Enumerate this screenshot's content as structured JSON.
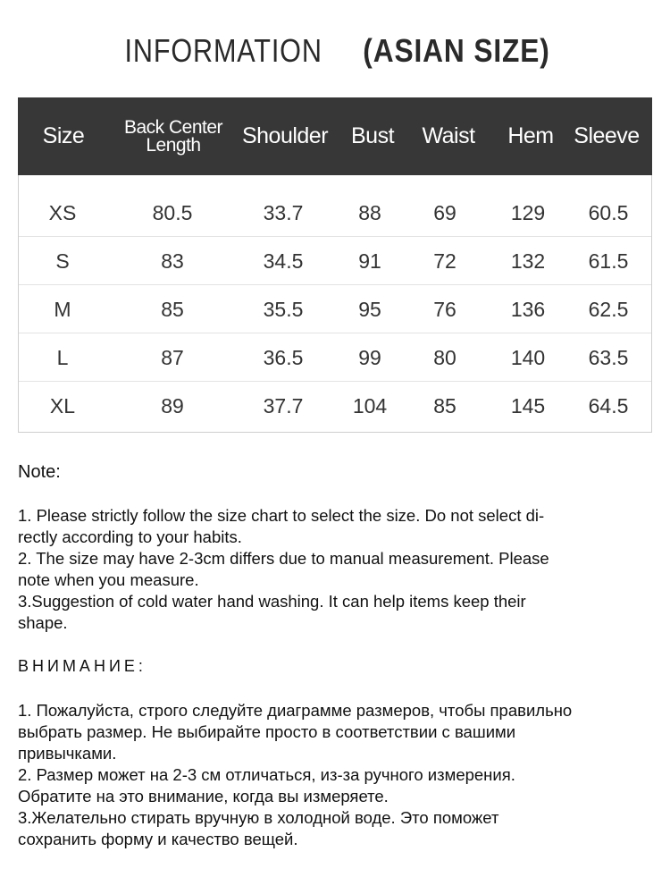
{
  "title": {
    "light": "INFORMATION",
    "bold": "(ASIAN SIZE)"
  },
  "table": {
    "headers": [
      "Size",
      "Back Center|Length",
      "Shoulder",
      "Bust",
      "Waist",
      "Hem",
      "Sleeve"
    ],
    "header_lines": {
      "back_center_1": "Back Center",
      "back_center_2": "Length"
    },
    "rows": [
      [
        "XS",
        "80.5",
        "33.7",
        "88",
        "69",
        "129",
        "60.5"
      ],
      [
        "S",
        "83",
        "34.5",
        "91",
        "72",
        "132",
        "61.5"
      ],
      [
        "M",
        "85",
        "35.5",
        "95",
        "76",
        "136",
        "62.5"
      ],
      [
        "L",
        "87",
        "36.5",
        "99",
        "80",
        "140",
        "63.5"
      ],
      [
        "XL",
        "89",
        "37.7",
        "104",
        "85",
        "145",
        "64.5"
      ]
    ],
    "header_bg": "#373737"
  },
  "note": {
    "heading": "Note:",
    "lines": [
      "1. Please strictly follow the size chart  to select the size. Do not select di-",
      "rectly according to your habits.",
      "2. The size may have 2-3cm differs due to manual measurement. Please",
      "note when you measure.",
      "3.Suggestion of cold water hand washing. It can help items keep their",
      "shape."
    ]
  },
  "note_ru": {
    "heading": "ВНИМАНИЕ:",
    "lines": [
      "1. Пожалуйста, строго следуйте диаграмме размеров, чтобы правильно",
      "выбрать размер. Не выбирайте просто в соответствии с вашими",
      "привычками.",
      "2. Размер может на 2-3 см отличаться, из-за ручного измерения.",
      "Обратите на это внимание, когда вы измеряете.",
      "3.Желательно стирать вручную в холодной воде. Это поможет",
      "сохранить форму и качество вещей."
    ]
  }
}
